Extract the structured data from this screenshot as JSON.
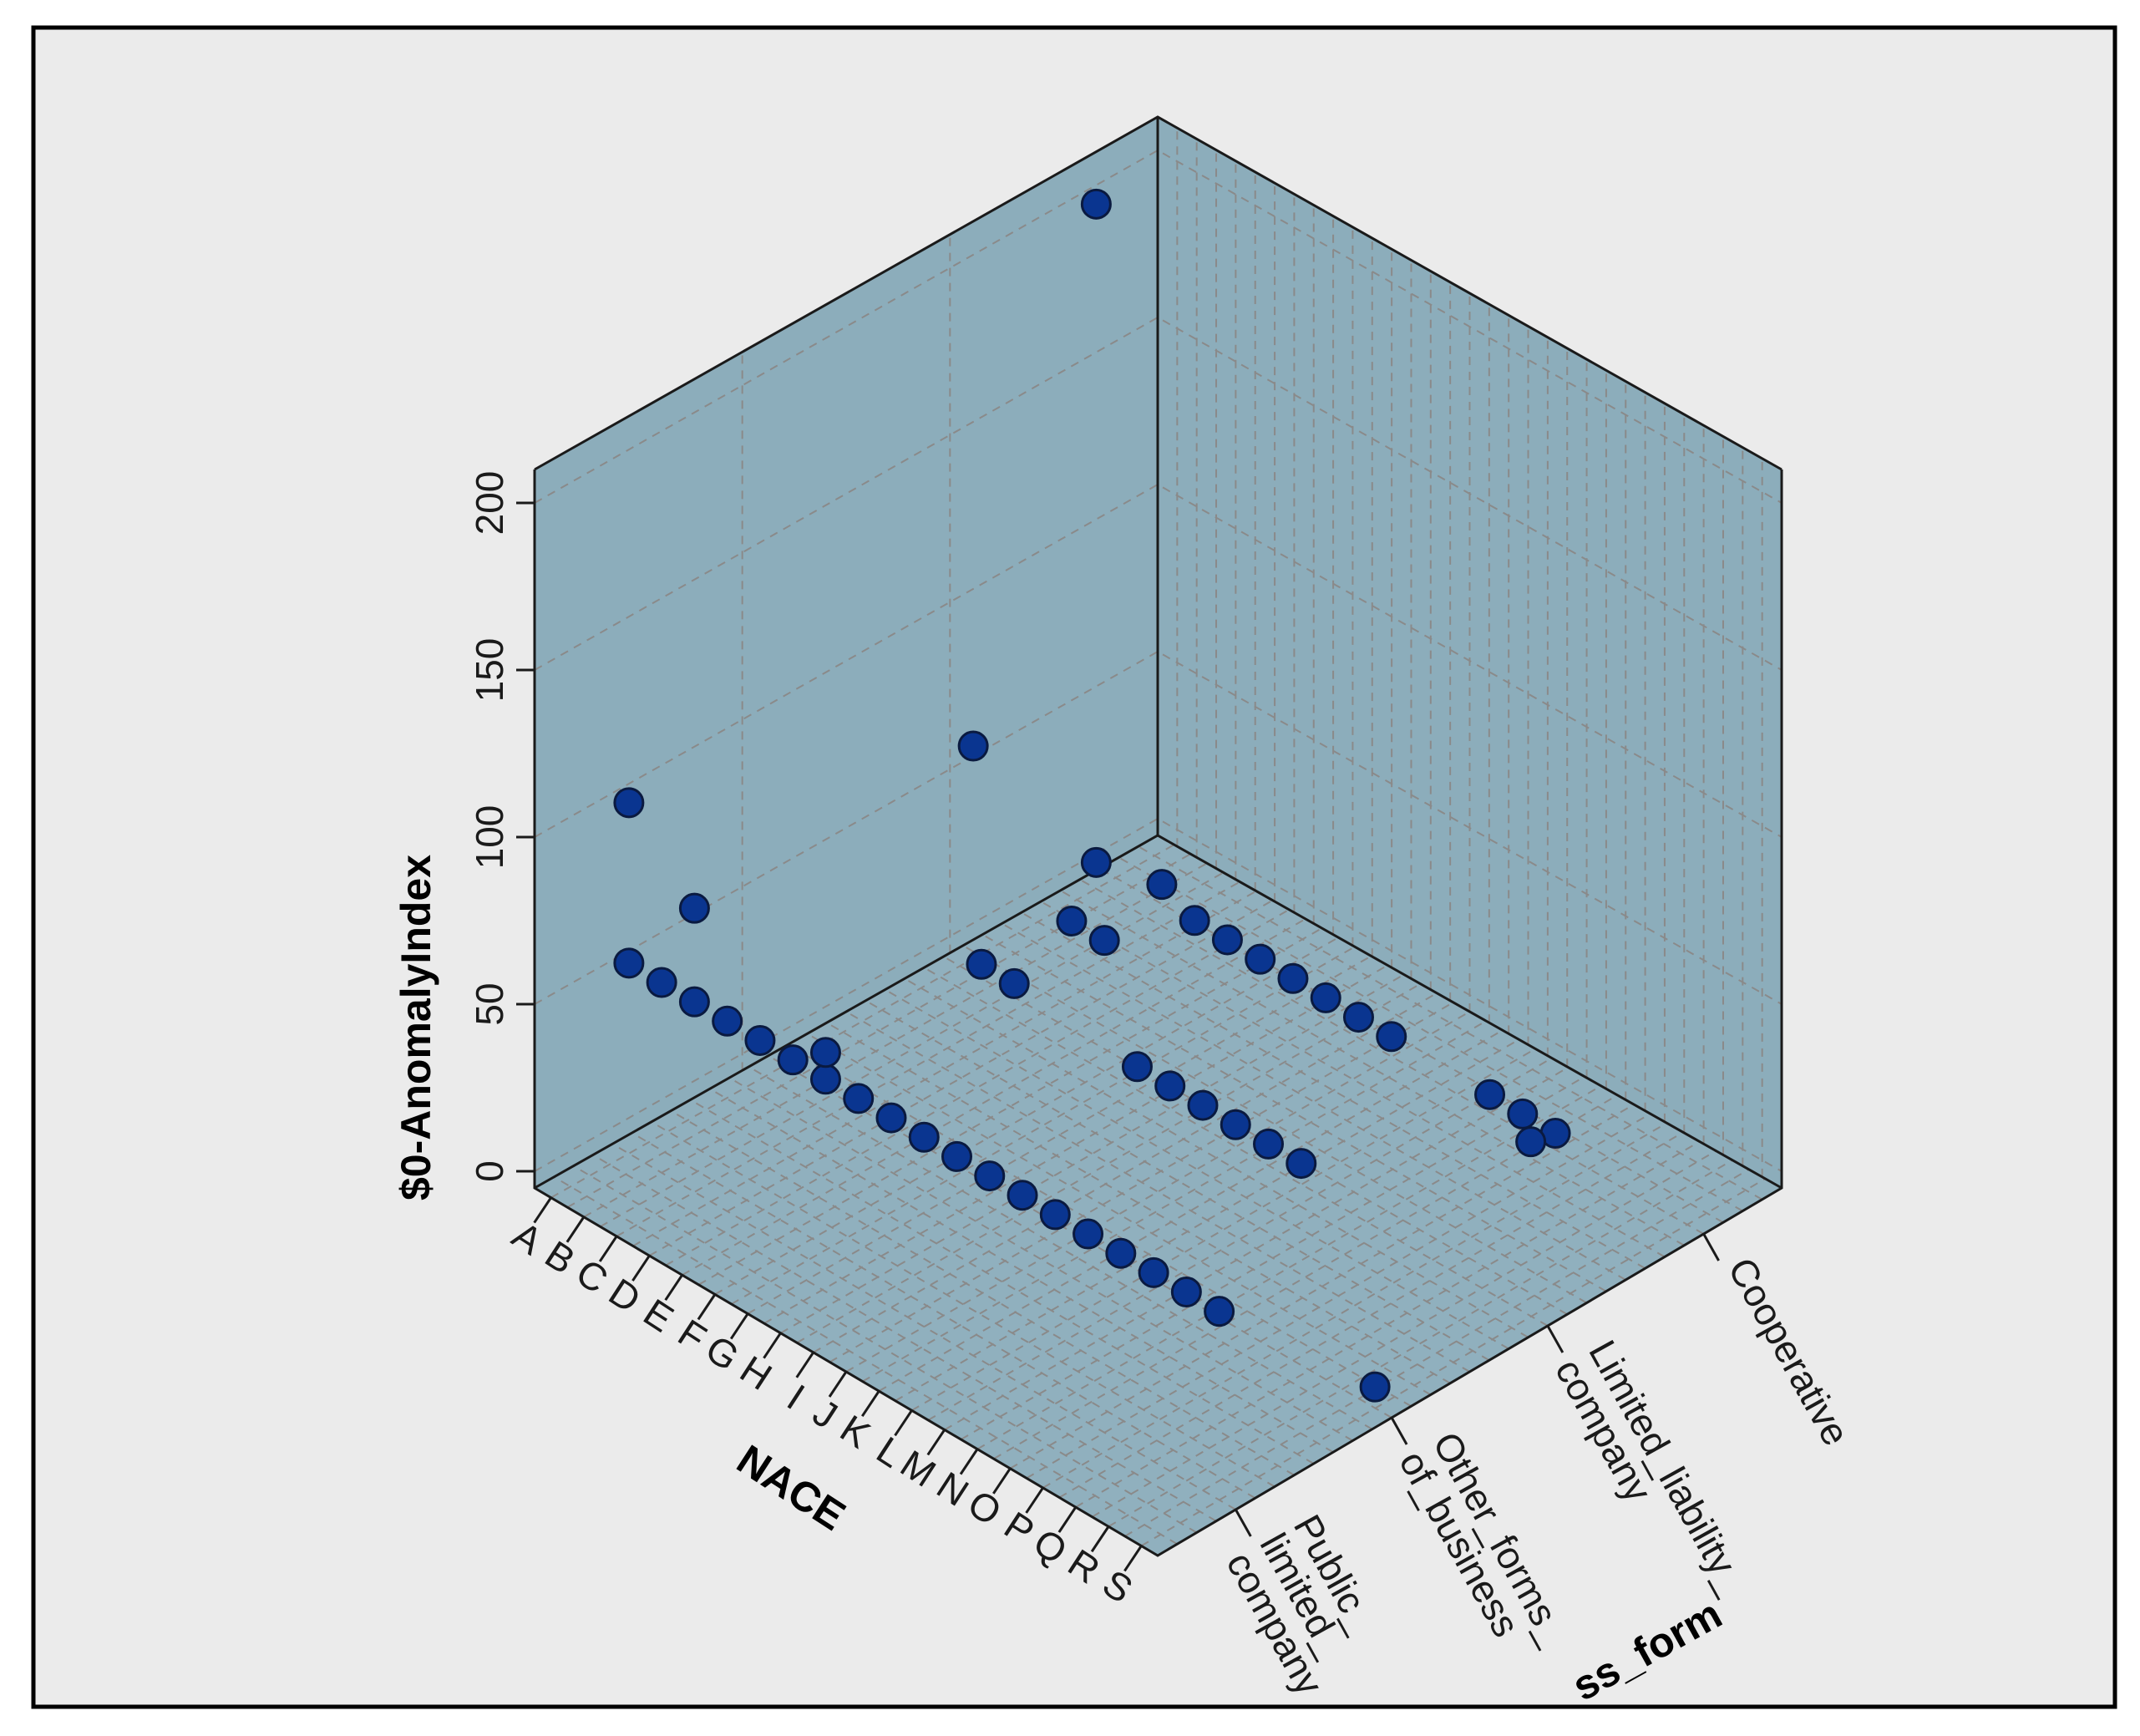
{
  "colors": {
    "frame_bg": "#ebebeb",
    "wall_fill": "#8cadbb",
    "floor_fill": "#90b0be",
    "grid": "#8a8a8a",
    "point_fill": "#0a3590",
    "point_stroke": "#0a1a40",
    "edge": "#1a1a1a"
  },
  "chart_data": {
    "type": "scatter3d",
    "title": "",
    "zlabel": "$0-AnomalyIndex",
    "xlabel": "NACE",
    "ylabel": "business_form",
    "ylabel_visible": "ss_form",
    "zlim": [
      0,
      200
    ],
    "z_ticks": [
      "0",
      "50",
      "100",
      "150",
      "200"
    ],
    "x_categories": [
      "A",
      "B",
      "C",
      "D",
      "E",
      "F",
      "G",
      "H",
      "I",
      "J",
      "K",
      "L",
      "M",
      "N",
      "O",
      "P",
      "Q",
      "R",
      "S"
    ],
    "y_categories": [
      [
        "Public_",
        "limited_",
        "company"
      ],
      [
        "Other_forms_",
        "of_business"
      ],
      [
        "Limited_liability_",
        "company"
      ],
      [
        "Cooperative"
      ]
    ],
    "points": [
      {
        "nace": "A",
        "form": "Cooperative",
        "anomaly": 3
      },
      {
        "nace": "A",
        "form": "Cooperative",
        "anomaly": 200
      },
      {
        "nace": "C",
        "form": "Cooperative",
        "anomaly": 8
      },
      {
        "nace": "D",
        "form": "Cooperative",
        "anomaly": 3
      },
      {
        "nace": "E",
        "form": "Cooperative",
        "anomaly": 3
      },
      {
        "nace": "F",
        "form": "Cooperative",
        "anomaly": 3
      },
      {
        "nace": "G",
        "form": "Cooperative",
        "anomaly": 3
      },
      {
        "nace": "H",
        "form": "Cooperative",
        "anomaly": 3
      },
      {
        "nace": "I",
        "form": "Cooperative",
        "anomaly": 3
      },
      {
        "nace": "J",
        "form": "Cooperative",
        "anomaly": 3
      },
      {
        "nace": "A",
        "form": "Public_limited_company",
        "anomaly": 52
      },
      {
        "nace": "B",
        "form": "Public_limited_company",
        "anomaly": 52
      },
      {
        "nace": "C",
        "form": "Public_limited_company",
        "anomaly": 52
      },
      {
        "nace": "D",
        "form": "Public_limited_company",
        "anomaly": 52
      },
      {
        "nace": "E",
        "form": "Public_limited_company",
        "anomaly": 52
      },
      {
        "nace": "F",
        "form": "Public_limited_company",
        "anomaly": 52
      },
      {
        "nace": "G",
        "form": "Public_limited_company",
        "anomaly": 52
      },
      {
        "nace": "G",
        "form": "Public_limited_company",
        "anomaly": 60
      },
      {
        "nace": "H",
        "form": "Public_limited_company",
        "anomaly": 52
      },
      {
        "nace": "I",
        "form": "Public_limited_company",
        "anomaly": 52
      },
      {
        "nace": "J",
        "form": "Public_limited_company",
        "anomaly": 52
      },
      {
        "nace": "K",
        "form": "Public_limited_company",
        "anomaly": 52
      },
      {
        "nace": "L",
        "form": "Public_limited_company",
        "anomaly": 52
      },
      {
        "nace": "M",
        "form": "Public_limited_company",
        "anomaly": 52
      },
      {
        "nace": "N",
        "form": "Public_limited_company",
        "anomaly": 52
      },
      {
        "nace": "O",
        "form": "Public_limited_company",
        "anomaly": 52
      },
      {
        "nace": "P",
        "form": "Public_limited_company",
        "anomaly": 52
      },
      {
        "nace": "Q",
        "form": "Public_limited_company",
        "anomaly": 52
      },
      {
        "nace": "R",
        "form": "Public_limited_company",
        "anomaly": 52
      },
      {
        "nace": "S",
        "form": "Public_limited_company",
        "anomaly": 52
      },
      {
        "nace": "A",
        "form": "Public_limited_company",
        "anomaly": 100
      },
      {
        "nace": "C",
        "form": "Public_limited_company",
        "anomaly": 80
      },
      {
        "nace": "G",
        "form": "Other_forms_of_business",
        "anomaly": 60
      },
      {
        "nace": "H",
        "form": "Other_forms_of_business",
        "anomaly": 60
      },
      {
        "nace": "G",
        "form": "Limited_liability_company",
        "anomaly": 3
      },
      {
        "nace": "H",
        "form": "Limited_liability_company",
        "anomaly": 3
      },
      {
        "nace": "I",
        "form": "Limited_liability_company",
        "anomaly": 3
      },
      {
        "nace": "J",
        "form": "Limited_liability_company",
        "anomaly": 3
      },
      {
        "nace": "K",
        "form": "Limited_liability_company",
        "anomaly": 3
      },
      {
        "nace": "L",
        "form": "Limited_liability_company",
        "anomaly": 3
      },
      {
        "nace": "E",
        "form": "Limited_liability_company",
        "anomaly": 35
      },
      {
        "nace": "F",
        "form": "Limited_liability_company",
        "anomaly": 35
      },
      {
        "nace": "M",
        "form": "Cooperative",
        "anomaly": 3
      },
      {
        "nace": "N",
        "form": "Cooperative",
        "anomaly": 3
      },
      {
        "nace": "O",
        "form": "Cooperative",
        "anomaly": 3
      },
      {
        "nace": "S",
        "form": "Other_forms_of_business",
        "anomaly": 3
      },
      {
        "nace": "S",
        "form": "Limited_liability_company",
        "anomaly": 50
      },
      {
        "nace": "B",
        "form": "Limited_liability_company",
        "anomaly": 70
      }
    ]
  }
}
